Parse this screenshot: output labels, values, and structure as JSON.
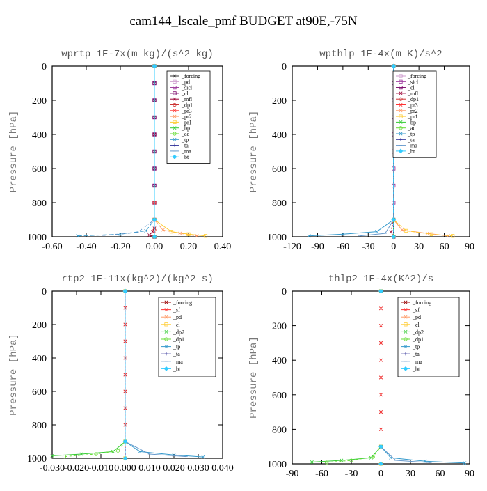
{
  "suptitle": "cam144_lscale_pmf  BUDGET at90E,-75N",
  "chart_data": [
    {
      "type": "line",
      "title": "wprtp   1E-7x(m kg)/(s^2 kg)",
      "ylabel": "Pressure [hPa]",
      "xlim": [
        -0.6,
        0.4
      ],
      "ylim": [
        1000,
        0
      ],
      "xticks": [
        "-0.60",
        "-0.40",
        "-0.20",
        "0.00",
        "0.20",
        "0.40"
      ],
      "yticks": [
        "0",
        "200",
        "400",
        "600",
        "800",
        "1000"
      ],
      "legend": "top-right",
      "series": [
        {
          "name": "_forcing",
          "color": "#333333",
          "marker": "x",
          "x": [
            0,
            0,
            0,
            0,
            0,
            0,
            0,
            0,
            0,
            0,
            0
          ],
          "y": [
            0,
            100,
            200,
            300,
            400,
            500,
            600,
            700,
            800,
            900,
            1000
          ]
        },
        {
          "name": "_pd",
          "color": "#cc99cc",
          "marker": "s",
          "x": [
            0,
            0,
            0,
            0,
            0,
            0,
            0,
            0,
            0,
            0,
            0
          ],
          "y": [
            0,
            100,
            200,
            300,
            400,
            500,
            600,
            700,
            800,
            900,
            1000
          ]
        },
        {
          "name": "_sicl",
          "color": "#993399",
          "marker": "s",
          "x": [
            0,
            0,
            0,
            0,
            0,
            0,
            0,
            0,
            0,
            0,
            0
          ],
          "y": [
            0,
            100,
            200,
            300,
            400,
            500,
            600,
            700,
            800,
            900,
            1000
          ]
        },
        {
          "name": "_cl",
          "color": "#770066",
          "marker": "s",
          "x": [
            0,
            0,
            0,
            0,
            0,
            0,
            0,
            0,
            0,
            0,
            0
          ],
          "y": [
            0,
            100,
            200,
            300,
            400,
            500,
            600,
            700,
            800,
            900,
            1000
          ]
        },
        {
          "name": "_mfl",
          "color": "#990033",
          "marker": "x",
          "x": [
            0,
            0,
            0,
            0,
            -0.01,
            -0.03,
            0
          ],
          "y": [
            0,
            400,
            800,
            950,
            970,
            990,
            1000
          ]
        },
        {
          "name": "_dp1",
          "color": "#cc3333",
          "marker": "o",
          "x": [
            0,
            0,
            0,
            0
          ],
          "y": [
            0,
            800,
            960,
            1000
          ]
        },
        {
          "name": "_pr3",
          "color": "#ff3333",
          "marker": "x",
          "x": [
            0,
            0,
            0,
            0
          ],
          "y": [
            0,
            800,
            970,
            1000
          ]
        },
        {
          "name": "_pr2",
          "color": "#ff9966",
          "marker": "x",
          "x": [
            0,
            0,
            0.05,
            0.15,
            0.25
          ],
          "y": [
            0,
            900,
            960,
            980,
            995
          ]
        },
        {
          "name": "_pr1",
          "color": "#ffcc33",
          "marker": "s",
          "x": [
            0,
            0,
            0.1,
            0.2,
            0.3
          ],
          "y": [
            0,
            900,
            970,
            985,
            995
          ]
        },
        {
          "name": "_bp",
          "color": "#33cc33",
          "marker": "x",
          "x": [
            0,
            0,
            0
          ],
          "y": [
            0,
            900,
            1000
          ]
        },
        {
          "name": "_ac",
          "color": "#66dd33",
          "marker": "o",
          "x": [
            0,
            0,
            0
          ],
          "y": [
            0,
            900,
            1000
          ]
        },
        {
          "name": "_tp",
          "color": "#3399cc",
          "marker": "x",
          "x": [
            0,
            0,
            -0.05,
            -0.2,
            -0.45
          ],
          "y": [
            0,
            900,
            965,
            985,
            995
          ]
        },
        {
          "name": "_ta",
          "color": "#333399",
          "marker": "+",
          "x": [
            0,
            0,
            0
          ],
          "y": [
            0,
            900,
            1000
          ]
        },
        {
          "name": "_ma",
          "color": "#6699cc",
          "marker": "-",
          "x": [
            0,
            0,
            -0.1,
            -0.3
          ],
          "y": [
            0,
            900,
            975,
            992
          ]
        },
        {
          "name": "_bt",
          "color": "#33ccff",
          "marker": "d",
          "x": [
            0,
            0,
            0
          ],
          "y": [
            0,
            900,
            1000
          ]
        }
      ]
    },
    {
      "type": "line",
      "title": "wpthlp   1E-4x(m K)/s^2",
      "ylabel": "Pressure [hPa]",
      "xlim": [
        -120,
        90
      ],
      "ylim": [
        1000,
        0
      ],
      "xticks": [
        "-120",
        "-90",
        "-60",
        "-30",
        "0",
        "30",
        "60",
        "90"
      ],
      "yticks": [
        "0",
        "200",
        "400",
        "600",
        "800",
        "1000"
      ],
      "legend": "top-right",
      "series": [
        {
          "name": "_forcing",
          "color": "#cc99cc",
          "marker": "s",
          "x": [
            0,
            0,
            0,
            0,
            0,
            0,
            0,
            0,
            0,
            0,
            0
          ],
          "y": [
            0,
            100,
            200,
            300,
            400,
            500,
            600,
            700,
            800,
            900,
            1000
          ]
        },
        {
          "name": "_sicl",
          "color": "#993399",
          "marker": "s",
          "x": [
            0,
            0,
            0,
            0,
            0,
            0,
            0,
            0,
            0,
            0,
            0
          ],
          "y": [
            0,
            100,
            200,
            300,
            400,
            500,
            600,
            700,
            800,
            900,
            1000
          ]
        },
        {
          "name": "_cl",
          "color": "#770066",
          "marker": "s",
          "x": [
            0,
            0,
            0,
            0
          ],
          "y": [
            0,
            500,
            900,
            1000
          ]
        },
        {
          "name": "_mfl",
          "color": "#990033",
          "marker": "x",
          "x": [
            0,
            0,
            -3,
            0
          ],
          "y": [
            0,
            900,
            970,
            1000
          ]
        },
        {
          "name": "_dp1",
          "color": "#cc3333",
          "marker": "o",
          "x": [
            0,
            0,
            0
          ],
          "y": [
            0,
            900,
            1000
          ]
        },
        {
          "name": "_pr3",
          "color": "#ff3333",
          "marker": "x",
          "x": [
            0,
            0,
            0
          ],
          "y": [
            0,
            900,
            1000
          ]
        },
        {
          "name": "_pr2",
          "color": "#ff9966",
          "marker": "x",
          "x": [
            0,
            0,
            10,
            40,
            65
          ],
          "y": [
            0,
            900,
            960,
            980,
            995
          ]
        },
        {
          "name": "_pr1",
          "color": "#ffcc33",
          "marker": "s",
          "x": [
            0,
            0,
            15,
            45,
            70
          ],
          "y": [
            0,
            900,
            965,
            985,
            995
          ]
        },
        {
          "name": "_bp",
          "color": "#33cc33",
          "marker": "x",
          "x": [
            0,
            0,
            0
          ],
          "y": [
            0,
            900,
            1000
          ]
        },
        {
          "name": "_ac",
          "color": "#66dd33",
          "marker": "o",
          "x": [
            0,
            0,
            0
          ],
          "y": [
            0,
            900,
            1000
          ]
        },
        {
          "name": "_tp",
          "color": "#3399cc",
          "marker": "x",
          "x": [
            0,
            0,
            -20,
            -60,
            -100
          ],
          "y": [
            0,
            900,
            970,
            985,
            995
          ]
        },
        {
          "name": "_ta",
          "color": "#333399",
          "marker": "+",
          "x": [
            0,
            0,
            0
          ],
          "y": [
            0,
            900,
            1000
          ]
        },
        {
          "name": "_ma",
          "color": "#6699cc",
          "marker": "-",
          "x": [
            0,
            0,
            -10,
            -40
          ],
          "y": [
            0,
            900,
            980,
            995
          ]
        },
        {
          "name": "_bt",
          "color": "#33ccff",
          "marker": "d",
          "x": [
            0,
            0,
            0
          ],
          "y": [
            0,
            900,
            1000
          ]
        }
      ]
    },
    {
      "type": "line",
      "title": "rtp2   1E-11x(kg^2)/(kg^2 s)",
      "ylabel": "Pressure [hPa]",
      "xlim": [
        -0.03,
        0.04
      ],
      "ylim": [
        1000,
        0
      ],
      "xticks": [
        "-0.030",
        "-0.020",
        "-0.010",
        "0.000",
        "0.010",
        "0.020",
        "0.030",
        "0.040"
      ],
      "yticks": [
        "0",
        "200",
        "400",
        "600",
        "800",
        "1000"
      ],
      "legend": "top-right",
      "series": [
        {
          "name": "_forcing",
          "color": "#990000",
          "marker": "x",
          "x": [
            0,
            0,
            0,
            0,
            0,
            0,
            0,
            0,
            0,
            0,
            0
          ],
          "y": [
            0,
            100,
            200,
            300,
            400,
            500,
            600,
            700,
            800,
            900,
            1000
          ]
        },
        {
          "name": "_sf",
          "color": "#ff3333",
          "marker": "x",
          "x": [
            0,
            0,
            0,
            0,
            0,
            0,
            0,
            0,
            0,
            0,
            0
          ],
          "y": [
            0,
            100,
            200,
            300,
            400,
            500,
            600,
            700,
            800,
            900,
            1000
          ]
        },
        {
          "name": "_pd",
          "color": "#ff9966",
          "marker": "x",
          "x": [
            0,
            0,
            0
          ],
          "y": [
            0,
            900,
            1000
          ]
        },
        {
          "name": "_cl",
          "color": "#ffcc33",
          "marker": "s",
          "x": [
            0,
            0,
            0
          ],
          "y": [
            0,
            900,
            1000
          ]
        },
        {
          "name": "_dp2",
          "color": "#33cc33",
          "marker": "x",
          "x": [
            0,
            0,
            -0.005,
            -0.018,
            -0.03
          ],
          "y": [
            0,
            900,
            960,
            975,
            985
          ]
        },
        {
          "name": "_dp1",
          "color": "#66dd33",
          "marker": "o",
          "x": [
            0,
            0,
            -0.003,
            -0.012,
            -0.025
          ],
          "y": [
            0,
            900,
            955,
            975,
            990
          ]
        },
        {
          "name": "_tp",
          "color": "#3399cc",
          "marker": "x",
          "x": [
            0,
            0,
            0.006,
            0.02,
            0.032
          ],
          "y": [
            0,
            900,
            960,
            980,
            992
          ]
        },
        {
          "name": "_ta",
          "color": "#333399",
          "marker": "+",
          "x": [
            0,
            0,
            0
          ],
          "y": [
            0,
            900,
            1000
          ]
        },
        {
          "name": "_ma",
          "color": "#6699cc",
          "marker": "-",
          "x": [
            0,
            0,
            0.01,
            0.025
          ],
          "y": [
            0,
            900,
            975,
            990
          ]
        },
        {
          "name": "_bt",
          "color": "#33ccff",
          "marker": "d",
          "x": [
            0,
            0,
            0
          ],
          "y": [
            0,
            900,
            1000
          ]
        }
      ]
    },
    {
      "type": "line",
      "title": "thlp2   1E-4x(K^2)/s",
      "ylabel": "Pressure [hPa]",
      "xlim": [
        -90,
        90
      ],
      "ylim": [
        1000,
        0
      ],
      "xticks": [
        "-90",
        "-60",
        "-30",
        "0",
        "30",
        "60",
        "90"
      ],
      "yticks": [
        "0",
        "200",
        "400",
        "600",
        "800",
        "1000"
      ],
      "legend": "top-right",
      "series": [
        {
          "name": "_forcing",
          "color": "#990000",
          "marker": "x",
          "x": [
            0,
            0,
            0,
            0,
            0,
            0,
            0,
            0,
            0,
            0,
            0
          ],
          "y": [
            0,
            100,
            200,
            300,
            400,
            500,
            600,
            700,
            800,
            900,
            1000
          ]
        },
        {
          "name": "_sf",
          "color": "#ff3333",
          "marker": "x",
          "x": [
            0,
            0,
            0,
            0,
            0,
            0,
            0,
            0,
            0,
            0,
            0
          ],
          "y": [
            0,
            100,
            200,
            300,
            400,
            500,
            600,
            700,
            800,
            900,
            1000
          ]
        },
        {
          "name": "_pd",
          "color": "#ff9966",
          "marker": "x",
          "x": [
            0,
            0,
            0
          ],
          "y": [
            0,
            900,
            1000
          ]
        },
        {
          "name": "_cl",
          "color": "#ffcc33",
          "marker": "s",
          "x": [
            0,
            0,
            0
          ],
          "y": [
            0,
            900,
            1000
          ]
        },
        {
          "name": "_dp2",
          "color": "#33cc33",
          "marker": "x",
          "x": [
            0,
            0,
            -10,
            -40,
            -70
          ],
          "y": [
            0,
            900,
            965,
            980,
            990
          ]
        },
        {
          "name": "_dp1",
          "color": "#66dd33",
          "marker": "o",
          "x": [
            0,
            0,
            -8,
            -30,
            -55
          ],
          "y": [
            0,
            900,
            960,
            980,
            992
          ]
        },
        {
          "name": "_tp",
          "color": "#3399cc",
          "marker": "x",
          "x": [
            0,
            0,
            10,
            45,
            85
          ],
          "y": [
            0,
            900,
            965,
            985,
            995
          ]
        },
        {
          "name": "_ta",
          "color": "#333399",
          "marker": "+",
          "x": [
            0,
            0,
            0
          ],
          "y": [
            0,
            900,
            1000
          ]
        },
        {
          "name": "_ma",
          "color": "#6699cc",
          "marker": "-",
          "x": [
            0,
            0,
            15,
            50
          ],
          "y": [
            0,
            900,
            980,
            993
          ]
        },
        {
          "name": "_bt",
          "color": "#33ccff",
          "marker": "d",
          "x": [
            0,
            0,
            0
          ],
          "y": [
            0,
            900,
            1000
          ]
        }
      ]
    }
  ]
}
